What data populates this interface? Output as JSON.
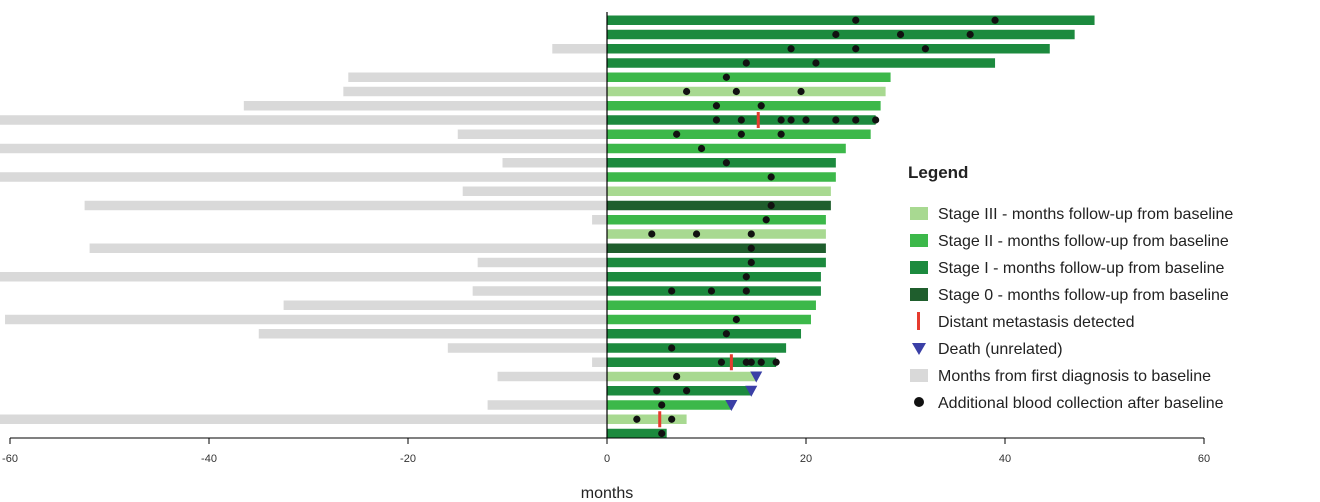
{
  "chart_data": {
    "type": "bar",
    "orientation": "horizontal",
    "xlabel": "months",
    "xlim": [
      -150,
      60
    ],
    "xticks": [
      -140,
      -120,
      -100,
      -80,
      -60,
      -40,
      -20,
      0,
      20,
      40,
      60
    ],
    "legend": {
      "title": "Legend",
      "placement": "right",
      "items": [
        {
          "key": "stage3",
          "label": "Stage III - months follow-up from baseline",
          "symbol": "bar",
          "color": "#a8d991"
        },
        {
          "key": "stage2",
          "label": "Stage II - months follow-up from baseline",
          "symbol": "bar",
          "color": "#3cb84a"
        },
        {
          "key": "stage1",
          "label": "Stage I - months follow-up from baseline",
          "symbol": "bar",
          "color": "#1c8a3e"
        },
        {
          "key": "stage0",
          "label": "Stage 0 - months follow-up from baseline",
          "symbol": "bar",
          "color": "#1f5e2d"
        },
        {
          "key": "metastasis",
          "label": "Distant metastasis detected",
          "symbol": "redline",
          "color": "#e63b2e"
        },
        {
          "key": "death",
          "label": "Death (unrelated)",
          "symbol": "triangle",
          "color": "#3a3fa6"
        },
        {
          "key": "diagnosis",
          "label": "Months from first diagnosis to baseline",
          "symbol": "bar",
          "color": "#d9d9d9"
        },
        {
          "key": "blood",
          "label": "Additional blood collection after baseline",
          "symbol": "dot",
          "color": "#111111"
        }
      ]
    },
    "colors": {
      "stage3": "#a8d991",
      "stage2": "#3cb84a",
      "stage1": "#1c8a3e",
      "stage0": "#1f5e2d",
      "diagnosis": "#d9d9d9",
      "metastasis": "#e63b2e",
      "death": "#3a3fa6",
      "blood": "#111111",
      "axis": "#000000"
    },
    "patients": [
      {
        "stage": "stage1",
        "followup": 49,
        "diagnosis": 0,
        "blood": [
          25,
          39
        ],
        "metastasis": null,
        "death": null
      },
      {
        "stage": "stage1",
        "followup": 47,
        "diagnosis": 0,
        "blood": [
          23,
          29.5,
          36.5
        ],
        "metastasis": null,
        "death": null
      },
      {
        "stage": "stage1",
        "followup": 44.5,
        "diagnosis": -5.5,
        "blood": [
          18.5,
          25,
          32
        ],
        "metastasis": null,
        "death": null
      },
      {
        "stage": "stage1",
        "followup": 39,
        "diagnosis": 0,
        "blood": [
          14,
          21
        ],
        "metastasis": null,
        "death": null
      },
      {
        "stage": "stage2",
        "followup": 28.5,
        "diagnosis": -26,
        "blood": [
          12
        ],
        "metastasis": null,
        "death": null
      },
      {
        "stage": "stage3",
        "followup": 28,
        "diagnosis": -26.5,
        "blood": [
          8,
          13,
          19.5
        ],
        "metastasis": null,
        "death": null
      },
      {
        "stage": "stage2",
        "followup": 27.5,
        "diagnosis": -36.5,
        "blood": [
          11,
          15.5
        ],
        "metastasis": null,
        "death": null
      },
      {
        "stage": "stage1",
        "followup": 27,
        "diagnosis": -135,
        "blood": [
          11,
          13.5,
          17.5,
          18.5,
          20,
          23,
          25,
          27
        ],
        "metastasis": 15.2,
        "death": null
      },
      {
        "stage": "stage2",
        "followup": 26.5,
        "diagnosis": -15,
        "blood": [
          7,
          13.5,
          17.5
        ],
        "metastasis": null,
        "death": null
      },
      {
        "stage": "stage2",
        "followup": 24,
        "diagnosis": -65,
        "blood": [
          9.5
        ],
        "metastasis": null,
        "death": null
      },
      {
        "stage": "stage1",
        "followup": 23,
        "diagnosis": -10.5,
        "blood": [
          12
        ],
        "metastasis": null,
        "death": null
      },
      {
        "stage": "stage2",
        "followup": 23,
        "diagnosis": -104,
        "blood": [
          16.5
        ],
        "metastasis": null,
        "death": null
      },
      {
        "stage": "stage3",
        "followup": 22.5,
        "diagnosis": -14.5,
        "blood": [],
        "metastasis": null,
        "death": null
      },
      {
        "stage": "stage0",
        "followup": 22.5,
        "diagnosis": -52.5,
        "blood": [
          16.5
        ],
        "metastasis": null,
        "death": null
      },
      {
        "stage": "stage2",
        "followup": 22,
        "diagnosis": -1.5,
        "blood": [
          16
        ],
        "metastasis": null,
        "death": null
      },
      {
        "stage": "stage3",
        "followup": 22,
        "diagnosis": 0,
        "blood": [
          4.5,
          9,
          14.5
        ],
        "metastasis": null,
        "death": null
      },
      {
        "stage": "stage0",
        "followup": 22,
        "diagnosis": -52,
        "blood": [
          14.5
        ],
        "metastasis": null,
        "death": null
      },
      {
        "stage": "stage1",
        "followup": 22,
        "diagnosis": -13,
        "blood": [
          14.5
        ],
        "metastasis": null,
        "death": null
      },
      {
        "stage": "stage1",
        "followup": 21.5,
        "diagnosis": -117,
        "blood": [
          14
        ],
        "metastasis": null,
        "death": null
      },
      {
        "stage": "stage1",
        "followup": 21.5,
        "diagnosis": -13.5,
        "blood": [
          6.5,
          10.5,
          14
        ],
        "metastasis": null,
        "death": null
      },
      {
        "stage": "stage2",
        "followup": 21,
        "diagnosis": -32.5,
        "blood": [],
        "metastasis": null,
        "death": null
      },
      {
        "stage": "stage2",
        "followup": 20.5,
        "diagnosis": -60.5,
        "blood": [
          13
        ],
        "metastasis": null,
        "death": null
      },
      {
        "stage": "stage1",
        "followup": 19.5,
        "diagnosis": -35,
        "blood": [
          12
        ],
        "metastasis": null,
        "death": null
      },
      {
        "stage": "stage1",
        "followup": 18,
        "diagnosis": -16,
        "blood": [
          6.5
        ],
        "metastasis": null,
        "death": null
      },
      {
        "stage": "stage1",
        "followup": 17,
        "diagnosis": -1.5,
        "blood": [
          11.5,
          14,
          14.5,
          15.5,
          17
        ],
        "metastasis": 12.5,
        "death": null
      },
      {
        "stage": "stage3",
        "followup": 15,
        "diagnosis": -11,
        "blood": [
          7
        ],
        "metastasis": null,
        "death": 15
      },
      {
        "stage": "stage1",
        "followup": 14.5,
        "diagnosis": 0,
        "blood": [
          5,
          8
        ],
        "metastasis": null,
        "death": 14.5
      },
      {
        "stage": "stage2",
        "followup": 12.5,
        "diagnosis": -12,
        "blood": [
          5.5
        ],
        "metastasis": null,
        "death": 12.5
      },
      {
        "stage": "stage3",
        "followup": 8,
        "diagnosis": -109,
        "blood": [
          3,
          6.5
        ],
        "metastasis": 5.3,
        "death": null
      },
      {
        "stage": "stage1",
        "followup": 6,
        "diagnosis": 0,
        "blood": [
          5.5
        ],
        "metastasis": null,
        "death": null
      }
    ]
  }
}
